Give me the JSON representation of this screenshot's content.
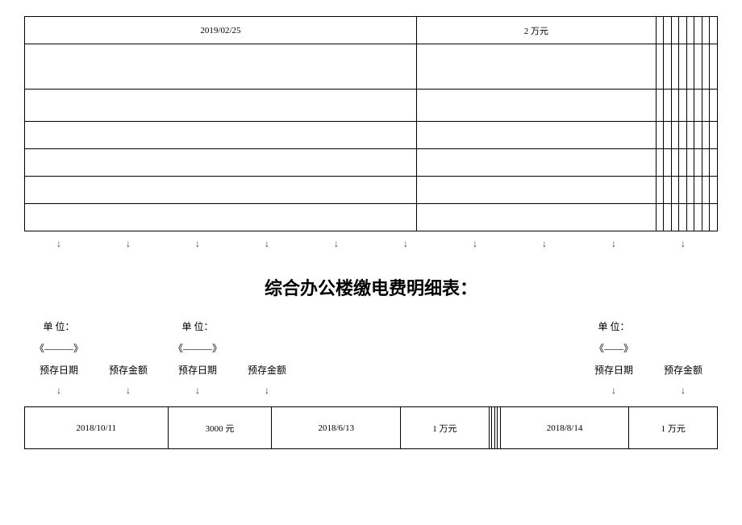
{
  "table1": {
    "columns": 10,
    "rows": [
      [
        "2019/02/25",
        "2 万元",
        "",
        "",
        "",
        "",
        "",
        "",
        "",
        ""
      ],
      [
        "",
        "",
        "",
        "",
        "",
        "",
        "",
        "",
        "",
        ""
      ],
      [
        "",
        "",
        "",
        "",
        "",
        "",
        "",
        "",
        "",
        ""
      ],
      [
        "",
        "",
        "",
        "",
        "",
        "",
        "",
        "",
        "",
        ""
      ],
      [
        "",
        "",
        "",
        "",
        "",
        "",
        "",
        "",
        "",
        ""
      ],
      [
        "",
        "",
        "",
        "",
        "",
        "",
        "",
        "",
        "",
        ""
      ],
      [
        "",
        "",
        "",
        "",
        "",
        "",
        "",
        "",
        "",
        ""
      ]
    ]
  },
  "arrows1": [
    "↓",
    "↓",
    "↓",
    "↓",
    "↓",
    "↓",
    "↓",
    "↓",
    "↓",
    "↓"
  ],
  "title": "综合办公楼缴电费明细表：",
  "header": {
    "row1": [
      "单 位：",
      "",
      "单 位：",
      "",
      "",
      "",
      "",
      "",
      "单 位：",
      ""
    ],
    "row2": [
      "《———》",
      "",
      "《———》",
      "",
      "",
      "",
      "",
      "",
      "《——》",
      ""
    ],
    "row3": [
      "预存日期",
      "预存金额",
      "预存日期",
      "预存金额",
      "",
      "",
      "",
      "",
      "预存日期",
      "预存金额"
    ]
  },
  "arrows2": [
    "↓",
    "↓",
    "↓",
    "↓",
    "",
    "",
    "",
    "",
    "↓",
    "↓"
  ],
  "table2": {
    "columns": 10,
    "rows": [
      [
        "2018/10/11",
        "3000 元",
        "2018/6/13",
        "1 万元",
        "",
        "",
        "",
        "",
        "2018/8/14",
        "1 万元"
      ]
    ]
  }
}
